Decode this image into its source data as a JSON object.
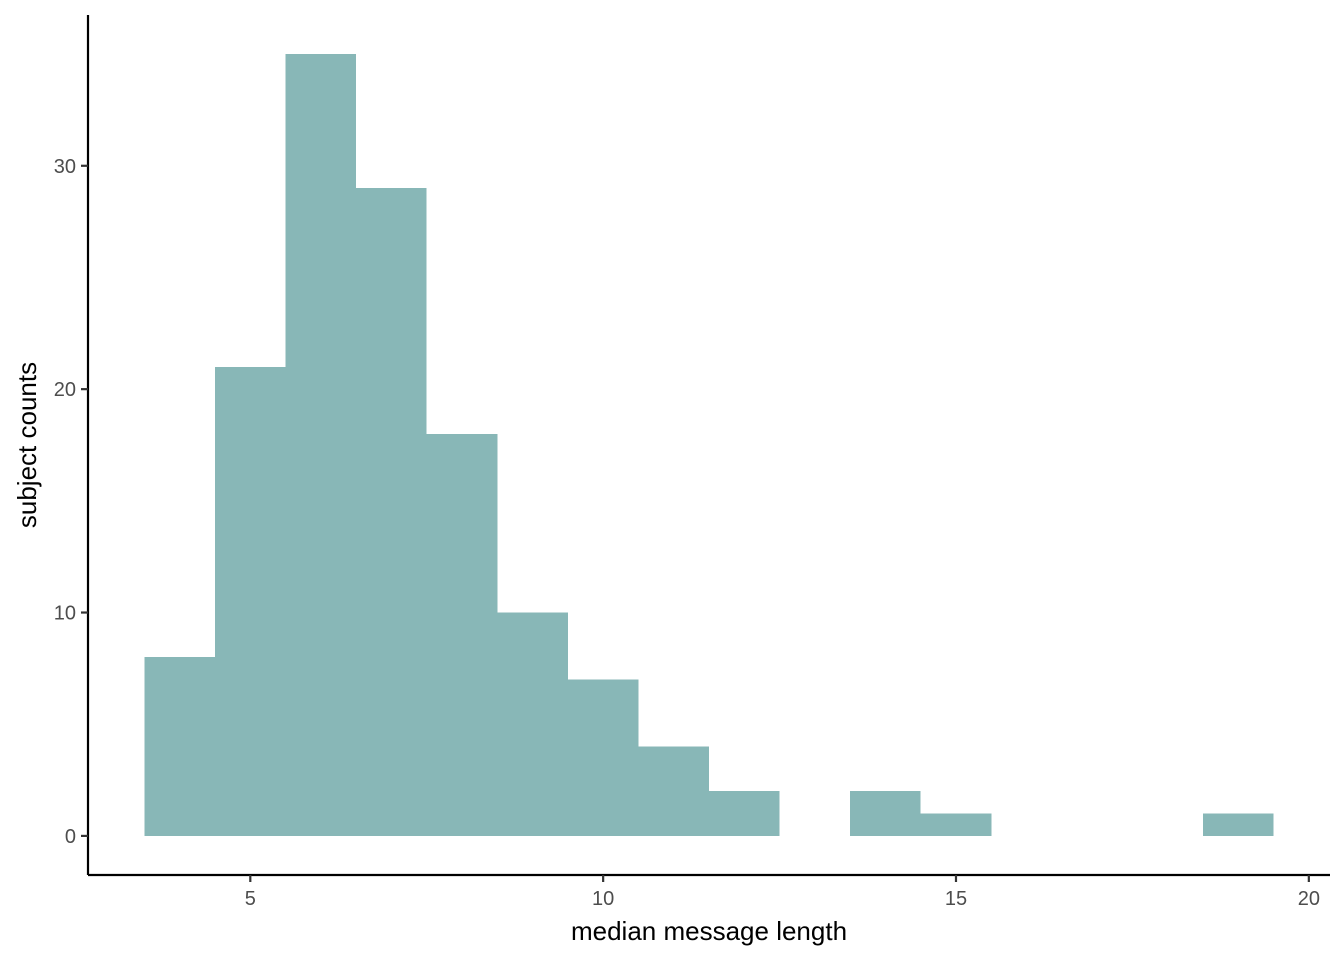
{
  "chart_data": {
    "type": "bar",
    "subtype": "histogram",
    "bin_width": 1,
    "bins": [
      {
        "start": 3.5,
        "end": 4.5,
        "count": 8
      },
      {
        "start": 4.5,
        "end": 5.5,
        "count": 21
      },
      {
        "start": 5.5,
        "end": 6.5,
        "count": 35
      },
      {
        "start": 6.5,
        "end": 7.5,
        "count": 29
      },
      {
        "start": 7.5,
        "end": 8.5,
        "count": 18
      },
      {
        "start": 8.5,
        "end": 9.5,
        "count": 10
      },
      {
        "start": 9.5,
        "end": 10.5,
        "count": 7
      },
      {
        "start": 10.5,
        "end": 11.5,
        "count": 4
      },
      {
        "start": 11.5,
        "end": 12.5,
        "count": 2
      },
      {
        "start": 12.5,
        "end": 13.5,
        "count": 0
      },
      {
        "start": 13.5,
        "end": 14.5,
        "count": 2
      },
      {
        "start": 14.5,
        "end": 15.5,
        "count": 1
      },
      {
        "start": 15.5,
        "end": 16.5,
        "count": 0
      },
      {
        "start": 16.5,
        "end": 17.5,
        "count": 0
      },
      {
        "start": 17.5,
        "end": 18.5,
        "count": 0
      },
      {
        "start": 18.5,
        "end": 19.5,
        "count": 1
      }
    ],
    "xlabel": "median message length",
    "ylabel": "subject counts",
    "xlim": [
      2.7,
      20.3
    ],
    "ylim": [
      -1.75,
      36.75
    ],
    "xticks": [
      5,
      10,
      15,
      20
    ],
    "yticks": [
      0,
      10,
      20,
      30
    ],
    "bar_color": "#88b7b7",
    "grid": false,
    "legend": "none"
  }
}
